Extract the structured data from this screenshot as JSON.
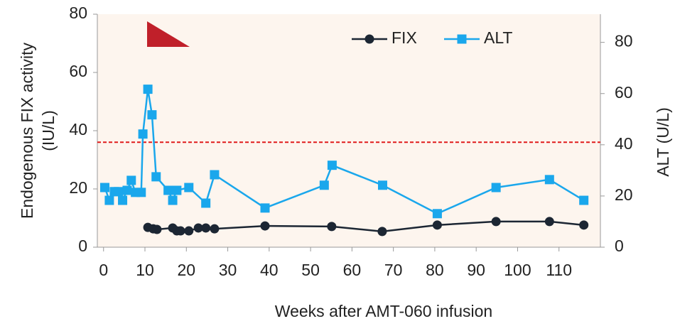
{
  "chart_data": {
    "type": "line",
    "xlabel": "Weeks after AMT-060 infusion",
    "ylabel": [
      "Endogenous FIX activity",
      "(IU/L)"
    ],
    "y2label": "ALT (U/L)",
    "xlim": [
      -1.5,
      120
    ],
    "xticks": [
      0,
      10,
      20,
      30,
      40,
      50,
      60,
      70,
      80,
      90,
      100,
      110
    ],
    "ylim": [
      0,
      80
    ],
    "yticks": [
      0,
      20,
      40,
      60,
      80
    ],
    "y2lim": [
      0,
      91
    ],
    "y2ticks": [
      0,
      20,
      40,
      60,
      80
    ],
    "legend": "top-right",
    "reference_line": {
      "axis": "y2",
      "value": 41,
      "color": "#e01b1b"
    },
    "series": [
      {
        "name": "FIX",
        "color": "#1c2633",
        "marker": "circle",
        "axis": "y",
        "x": [
          10.7,
          12.0,
          12.9,
          16.7,
          17.7,
          18.6,
          20.6,
          22.9,
          24.7,
          26.8,
          39.0,
          55.1,
          67.3,
          80.6,
          94.8,
          107.7,
          116
        ],
        "values": [
          6.8,
          6.3,
          6.1,
          6.6,
          5.6,
          5.6,
          5.6,
          6.6,
          6.6,
          6.3,
          7.3,
          7.1,
          5.4,
          7.6,
          8.8,
          8.8,
          7.6
        ]
      },
      {
        "name": "ALT",
        "color": "#1aa7ec",
        "marker": "square",
        "axis": "y2",
        "x": [
          0.3,
          1.4,
          2.6,
          3.6,
          4.6,
          5.7,
          6.7,
          7.7,
          9.1,
          9.5,
          10.7,
          11.7,
          12.7,
          15.6,
          16.7,
          17.7,
          20.6,
          24.7,
          26.8,
          39.0,
          53.3,
          55.2,
          67.4,
          80.6,
          94.8,
          107.7,
          116
        ],
        "values": [
          23.3,
          18.3,
          21.7,
          21.7,
          18.3,
          22.2,
          26.1,
          21.4,
          21.4,
          44.2,
          61.7,
          51.7,
          27.5,
          22.2,
          18.3,
          22.2,
          23.3,
          17.2,
          28.3,
          15.3,
          24.2,
          32.0,
          24.2,
          13.1,
          23.3,
          26.4,
          18.3
        ]
      }
    ]
  }
}
